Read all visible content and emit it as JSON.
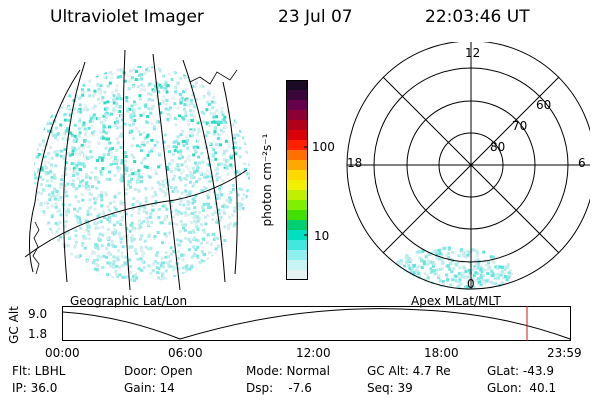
{
  "header": {
    "title": "Ultraviolet Imager",
    "date": "23 Jul 07",
    "time": "22:03:46 UT"
  },
  "colorbar": {
    "label": "photon cm⁻²s⁻¹",
    "ticks": [
      "100",
      "10"
    ],
    "colors": [
      "#1a0a24",
      "#3a0838",
      "#66004d",
      "#8c0036",
      "#b3001a",
      "#d9000a",
      "#ff2000",
      "#ff7000",
      "#ffa800",
      "#ffd800",
      "#f0f000",
      "#c0f000",
      "#80f000",
      "#40e000",
      "#00d070",
      "#00e0c0",
      "#40e8e0",
      "#90f0f0",
      "#c8f4f4",
      "#e6f2f2"
    ]
  },
  "geo_map": {
    "label": "Geographic Lat/Lon"
  },
  "polar_map": {
    "label": "Apex MLat/MLT",
    "hour_labels": {
      "top": "12",
      "left": "18",
      "right": "6",
      "bottom": "0"
    },
    "ring_labels": [
      "60",
      "70",
      "80"
    ]
  },
  "altitude_plot": {
    "ylabel": "GC Alt",
    "yticks": [
      "9.0",
      "1.8"
    ],
    "xticks": [
      "00:00",
      "06:00",
      "12:00",
      "18:00",
      "23:59"
    ],
    "marker_color": "#e01010"
  },
  "info": {
    "filter": "Flt: LBHL",
    "ip": "IP: 36.0",
    "door": "Door: Open",
    "gain": "Gain: 14",
    "mode": "Mode: Normal",
    "dsp": "Dsp:    -7.6",
    "gc_alt": "GC Alt: 4.7 Re",
    "seq": "Seq: 39",
    "glat": "GLat: -43.9",
    "glon": "GLon:  40.1"
  }
}
